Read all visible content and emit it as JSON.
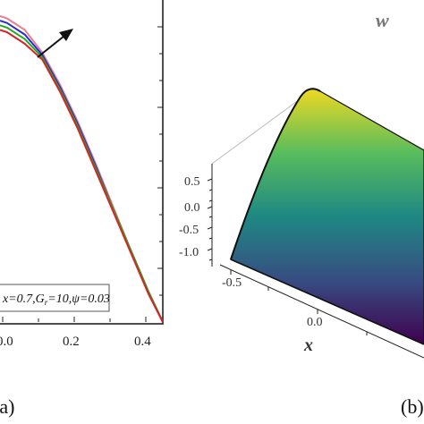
{
  "chart_data": [
    {
      "type": "line",
      "panel_label": "(a)",
      "x_ticks": [
        "0.0",
        "0.2",
        "0.4"
      ],
      "xlim": [
        -0.02,
        0.44
      ],
      "ylim": [
        -1.05,
        0.35
      ],
      "legend_text": "x=0.7,G",
      "legend_sub": "r",
      "legend_tail": "=10,ψ=0.03",
      "arrow": "increasing",
      "series": [
        {
          "color": "#e87f8f",
          "peak": 0.28,
          "x": [
            -0.02,
            0.0,
            0.05,
            0.1,
            0.15,
            0.2,
            0.25,
            0.3,
            0.35,
            0.4,
            0.44
          ],
          "y": [
            0.28,
            0.27,
            0.22,
            0.12,
            -0.02,
            -0.18,
            -0.36,
            -0.55,
            -0.74,
            -0.92,
            -1.05
          ]
        },
        {
          "color": "#2b2bd6",
          "peak": 0.26,
          "x": [
            -0.02,
            0.0,
            0.05,
            0.1,
            0.15,
            0.2,
            0.25,
            0.3,
            0.35,
            0.4,
            0.44
          ],
          "y": [
            0.26,
            0.25,
            0.2,
            0.11,
            -0.03,
            -0.19,
            -0.37,
            -0.56,
            -0.74,
            -0.92,
            -1.05
          ]
        },
        {
          "color": "#22aa22",
          "peak": 0.24,
          "x": [
            -0.02,
            0.0,
            0.05,
            0.1,
            0.15,
            0.2,
            0.25,
            0.3,
            0.35,
            0.4,
            0.44
          ],
          "y": [
            0.24,
            0.23,
            0.18,
            0.1,
            -0.04,
            -0.2,
            -0.38,
            -0.56,
            -0.74,
            -0.92,
            -1.05
          ]
        },
        {
          "color": "#dd2222",
          "peak": 0.22,
          "x": [
            -0.02,
            0.0,
            0.05,
            0.1,
            0.15,
            0.2,
            0.25,
            0.3,
            0.35,
            0.4,
            0.44
          ],
          "y": [
            0.22,
            0.21,
            0.16,
            0.09,
            -0.05,
            -0.21,
            -0.39,
            -0.57,
            -0.75,
            -0.93,
            -1.05
          ]
        }
      ]
    },
    {
      "type": "surface3d",
      "panel_label": "(b)",
      "z_label": "w",
      "x_label": "x",
      "z_ticks": [
        "0.5",
        "0.0",
        "-0.5",
        "-1.0"
      ],
      "x_ticks": [
        "-0.5",
        "0.0"
      ],
      "colormap": [
        "#440154",
        "#3b528b",
        "#21918c",
        "#5ec962",
        "#fde725"
      ]
    }
  ]
}
